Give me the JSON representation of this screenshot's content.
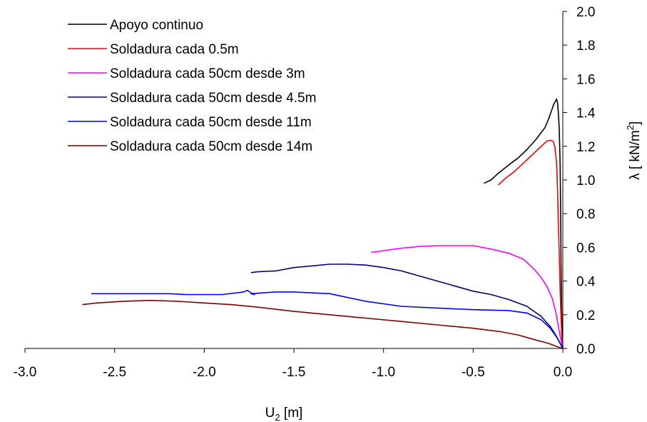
{
  "chart_data": {
    "type": "line",
    "xlabel_main": "U",
    "xlabel_sub": "2",
    "xlabel_rest": " [m]",
    "ylabel_main": "λ [ kN/m",
    "ylabel_sup": "2",
    "ylabel_close": "]",
    "xlim": [
      -3.0,
      0.0
    ],
    "ylim": [
      0.0,
      2.0
    ],
    "x_ticks": [
      "-3.0",
      "-2.5",
      "-2.0",
      "-1.5",
      "-1.0",
      "-0.5",
      "0.0"
    ],
    "y_ticks": [
      "0.0",
      "0.2",
      "0.4",
      "0.6",
      "0.8",
      "1.0",
      "1.2",
      "1.4",
      "1.6",
      "1.8",
      "2.0"
    ],
    "grid": false,
    "legend_position": "top-left",
    "series": [
      {
        "name": "Apoyo continuo",
        "color": "#000000",
        "points": [
          [
            -0.44,
            0.98
          ],
          [
            -0.4,
            1.0
          ],
          [
            -0.36,
            1.04
          ],
          [
            -0.3,
            1.09
          ],
          [
            -0.25,
            1.13
          ],
          [
            -0.2,
            1.18
          ],
          [
            -0.15,
            1.24
          ],
          [
            -0.1,
            1.31
          ],
          [
            -0.08,
            1.36
          ],
          [
            -0.06,
            1.42
          ],
          [
            -0.05,
            1.45
          ],
          [
            -0.04,
            1.47
          ],
          [
            -0.035,
            1.48
          ],
          [
            -0.03,
            1.46
          ],
          [
            -0.025,
            1.4
          ],
          [
            -0.02,
            1.3
          ],
          [
            -0.015,
            1.1
          ],
          [
            -0.012,
            0.8
          ],
          [
            -0.01,
            0.5
          ],
          [
            -0.007,
            0.25
          ],
          [
            -0.004,
            0.08
          ],
          [
            0.0,
            0.0
          ]
        ]
      },
      {
        "name": "Soldadura cada 0.5m",
        "color": "#ff0000",
        "points": [
          [
            -0.36,
            0.97
          ],
          [
            -0.32,
            1.01
          ],
          [
            -0.27,
            1.05
          ],
          [
            -0.22,
            1.1
          ],
          [
            -0.18,
            1.14
          ],
          [
            -0.14,
            1.18
          ],
          [
            -0.11,
            1.21
          ],
          [
            -0.09,
            1.23
          ],
          [
            -0.07,
            1.235
          ],
          [
            -0.055,
            1.23
          ],
          [
            -0.045,
            1.2
          ],
          [
            -0.035,
            1.1
          ],
          [
            -0.03,
            0.95
          ],
          [
            -0.025,
            0.75
          ],
          [
            -0.02,
            0.55
          ],
          [
            -0.015,
            0.35
          ],
          [
            -0.01,
            0.18
          ],
          [
            -0.005,
            0.06
          ],
          [
            0.0,
            0.0
          ]
        ]
      },
      {
        "name": "Soldadura cada 50cm desde 3m",
        "color": "#ff00ff",
        "points": [
          [
            -1.07,
            0.57
          ],
          [
            -1.0,
            0.58
          ],
          [
            -0.9,
            0.595
          ],
          [
            -0.8,
            0.605
          ],
          [
            -0.7,
            0.61
          ],
          [
            -0.6,
            0.61
          ],
          [
            -0.5,
            0.61
          ],
          [
            -0.4,
            0.59
          ],
          [
            -0.3,
            0.565
          ],
          [
            -0.22,
            0.53
          ],
          [
            -0.16,
            0.47
          ],
          [
            -0.12,
            0.42
          ],
          [
            -0.09,
            0.37
          ],
          [
            -0.06,
            0.3
          ],
          [
            -0.04,
            0.22
          ],
          [
            -0.025,
            0.13
          ],
          [
            -0.012,
            0.06
          ],
          [
            0.0,
            0.0
          ]
        ]
      },
      {
        "name": "Soldadura cada 50cm desde 4.5m",
        "color": "#000080",
        "points": [
          [
            -1.74,
            0.45
          ],
          [
            -1.7,
            0.455
          ],
          [
            -1.6,
            0.46
          ],
          [
            -1.5,
            0.48
          ],
          [
            -1.4,
            0.49
          ],
          [
            -1.3,
            0.5
          ],
          [
            -1.2,
            0.5
          ],
          [
            -1.1,
            0.495
          ],
          [
            -1.0,
            0.48
          ],
          [
            -0.9,
            0.46
          ],
          [
            -0.8,
            0.43
          ],
          [
            -0.7,
            0.4
          ],
          [
            -0.6,
            0.37
          ],
          [
            -0.5,
            0.34
          ],
          [
            -0.4,
            0.32
          ],
          [
            -0.3,
            0.29
          ],
          [
            -0.2,
            0.25
          ],
          [
            -0.12,
            0.19
          ],
          [
            -0.07,
            0.13
          ],
          [
            -0.04,
            0.08
          ],
          [
            -0.02,
            0.04
          ],
          [
            0.0,
            0.0
          ]
        ]
      },
      {
        "name": "Soldadura cada 50cm desde 11m",
        "color": "#0000ff",
        "points": [
          [
            -2.63,
            0.325
          ],
          [
            -2.4,
            0.325
          ],
          [
            -2.2,
            0.325
          ],
          [
            -2.1,
            0.32
          ],
          [
            -1.9,
            0.32
          ],
          [
            -1.78,
            0.335
          ],
          [
            -1.76,
            0.345
          ],
          [
            -1.74,
            0.33
          ],
          [
            -1.72,
            0.32
          ],
          [
            -1.74,
            0.325
          ],
          [
            -1.6,
            0.335
          ],
          [
            -1.5,
            0.335
          ],
          [
            -1.3,
            0.325
          ],
          [
            -1.1,
            0.28
          ],
          [
            -0.9,
            0.25
          ],
          [
            -0.7,
            0.24
          ],
          [
            -0.5,
            0.23
          ],
          [
            -0.3,
            0.225
          ],
          [
            -0.2,
            0.21
          ],
          [
            -0.12,
            0.17
          ],
          [
            -0.07,
            0.12
          ],
          [
            -0.03,
            0.06
          ],
          [
            0.0,
            0.0
          ]
        ]
      },
      {
        "name": "Soldadura cada 50cm desde 14m",
        "color": "#800000",
        "points": [
          [
            -2.68,
            0.26
          ],
          [
            -2.6,
            0.27
          ],
          [
            -2.45,
            0.28
          ],
          [
            -2.3,
            0.285
          ],
          [
            -2.15,
            0.28
          ],
          [
            -2.0,
            0.27
          ],
          [
            -1.85,
            0.26
          ],
          [
            -1.7,
            0.245
          ],
          [
            -1.5,
            0.22
          ],
          [
            -1.3,
            0.2
          ],
          [
            -1.1,
            0.18
          ],
          [
            -0.9,
            0.16
          ],
          [
            -0.7,
            0.14
          ],
          [
            -0.5,
            0.12
          ],
          [
            -0.35,
            0.1
          ],
          [
            -0.25,
            0.08
          ],
          [
            -0.15,
            0.05
          ],
          [
            -0.08,
            0.03
          ],
          [
            -0.03,
            0.01
          ],
          [
            0.0,
            0.0
          ]
        ]
      }
    ]
  }
}
